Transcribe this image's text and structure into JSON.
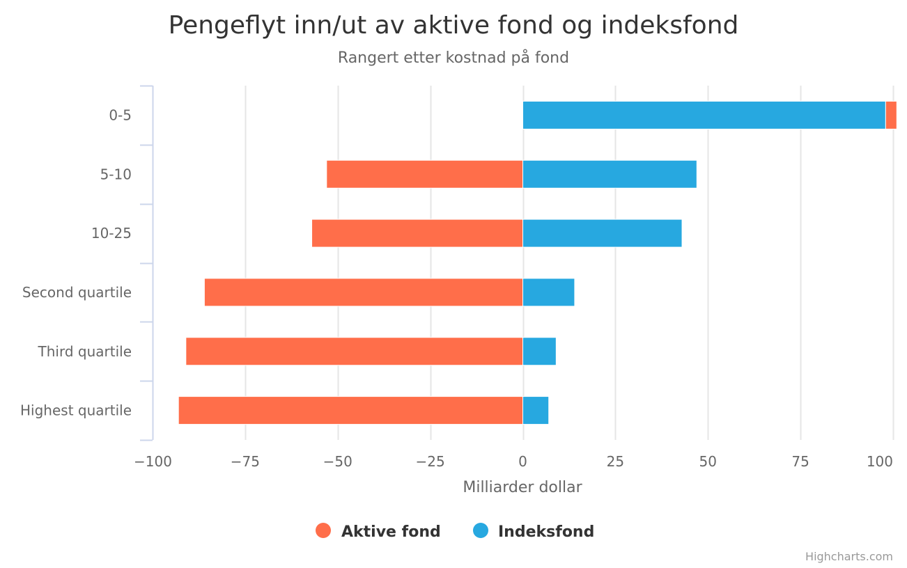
{
  "chart_data": {
    "type": "bar",
    "orientation": "horizontal",
    "stacking": "normal",
    "title": "Pengeflyt inn/ut av aktive fond og indeksfond",
    "subtitle": "Rangert etter kostnad på fond",
    "xlabel": "Milliarder dollar",
    "categories": [
      "0-5",
      "5-10",
      "10-25",
      "Second quartile",
      "Third quartile",
      "Highest quartile"
    ],
    "series": [
      {
        "name": "Aktive fond",
        "color": "#ff6e4a",
        "values": [
          3,
          -53,
          -57,
          -86,
          -91,
          -93
        ]
      },
      {
        "name": "Indeksfond",
        "color": "#27a8e0",
        "values": [
          98,
          47,
          43,
          14,
          9,
          7
        ]
      }
    ],
    "xlim": [
      -100,
      100
    ],
    "ticks": [
      -100,
      -75,
      -50,
      -25,
      0,
      25,
      50,
      75,
      100
    ],
    "tick_labels": [
      "−100",
      "−75",
      "−50",
      "−25",
      "0",
      "25",
      "50",
      "75",
      "100"
    ],
    "grid": true,
    "legend": "bottom-center",
    "credits": "Highcharts.com"
  }
}
